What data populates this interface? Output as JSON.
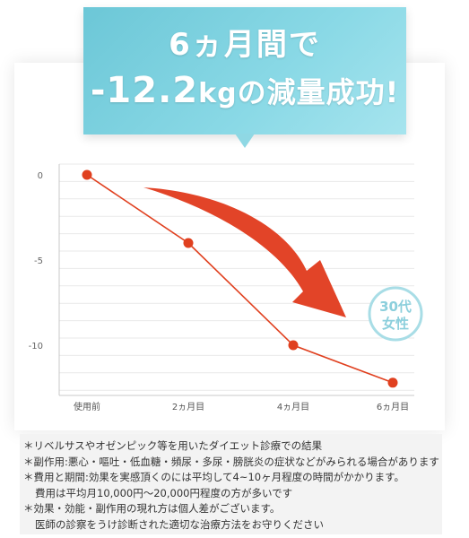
{
  "banner": {
    "line1": "6ヵ月間で",
    "line2_value": "-12.2",
    "line2_unit": "kg",
    "line2_rest": "の減量成功!"
  },
  "badge": {
    "line1": "30代",
    "line2": "女性"
  },
  "colors": {
    "accent": "#e0401f",
    "banner": "#7fd0de",
    "badge": "#a8dde6"
  },
  "chart_data": {
    "type": "line",
    "categories": [
      "使用前",
      "2ヵ月目",
      "4ヵ月目",
      "6ヵ月目"
    ],
    "series": [
      {
        "values": [
          0,
          -4,
          -10,
          -12.2
        ]
      }
    ],
    "yticks": [
      "0",
      "-5",
      "-10"
    ],
    "ylim": [
      -12.5,
      0.5
    ],
    "grid": true
  },
  "notes": [
    {
      "text": "＊リベルサスやオゼンピック等を用いたダイエット診療での結果",
      "indent": false
    },
    {
      "text": "＊副作用:悪心・嘔吐・低血糖・頻尿・多尿・膀胱炎の症状などがみられる場合があります",
      "indent": false
    },
    {
      "text": "＊費用と期間:効果を実感頂くのには平均して4~10ヶ月程度の時間がかかります。",
      "indent": false
    },
    {
      "text": "費用は平均月10,000円〜20,000円程度の方が多いです",
      "indent": true
    },
    {
      "text": "＊効果・効能・副作用の現れ方は個人差がございます。",
      "indent": false
    },
    {
      "text": "医師の診察をうけ診断された適切な治療方法をお守りください",
      "indent": true
    }
  ]
}
